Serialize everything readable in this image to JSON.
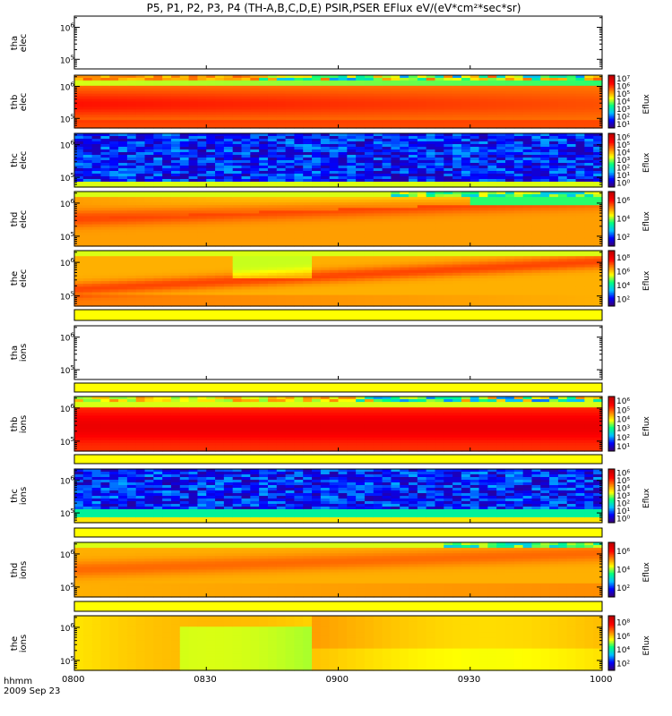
{
  "title": "P5, P1, P2, P3, P4 (TH-A,B,C,D,E) PSIR,PSER EFlux eV/(eV*cm²*sec*sr)",
  "x_axis": {
    "label_line1": "hhmm",
    "label_line2": "2009 Sep 23",
    "ticks": [
      "0800",
      "0830",
      "0900",
      "0930",
      "1000"
    ]
  },
  "chart_data": {
    "type": "heatmap",
    "x_range": [
      "08:00",
      "10:00"
    ],
    "xlabel": "hhmm",
    "y_scale": "log",
    "colorbar_label": "Eflux",
    "panels": [
      {
        "name": "tha_elec",
        "label1": "tha",
        "label2": "elec",
        "has_data": false,
        "yticks": [
          {
            "value": 100000,
            "label": "10",
            "exp": "5"
          },
          {
            "value": 1000000,
            "label": "10",
            "exp": "6"
          }
        ],
        "colorbar": null
      },
      {
        "name": "thb_elec",
        "label1": "thb",
        "label2": "elec",
        "has_data": true,
        "pattern": "thb_elec",
        "yticks": [
          {
            "value": 100000,
            "label": "10",
            "exp": "5"
          },
          {
            "value": 1000000,
            "label": "10",
            "exp": "6"
          }
        ],
        "colorbar": {
          "min_exp": 1,
          "max_exp": 7,
          "labels": [
            "10¹",
            "10²",
            "10³",
            "10⁴",
            "10⁵",
            "10⁶",
            "10⁷"
          ]
        }
      },
      {
        "name": "thc_elec",
        "label1": "thc",
        "label2": "elec",
        "has_data": true,
        "pattern": "thc_elec",
        "yticks": [
          {
            "value": 100000,
            "label": "10",
            "exp": "5"
          },
          {
            "value": 1000000,
            "label": "10",
            "exp": "6"
          }
        ],
        "colorbar": {
          "min_exp": 0,
          "max_exp": 6,
          "labels": [
            "10⁰",
            "10¹",
            "10²",
            "10³",
            "10⁴",
            "10⁵",
            "10⁶"
          ]
        }
      },
      {
        "name": "thd_elec",
        "label1": "thd",
        "label2": "elec",
        "has_data": true,
        "pattern": "thd_elec",
        "yticks": [
          {
            "value": 100000,
            "label": "10",
            "exp": "5"
          },
          {
            "value": 1000000,
            "label": "10",
            "exp": "6"
          }
        ],
        "colorbar": {
          "min_exp": 1,
          "max_exp": 6,
          "labels": [
            "10²",
            "10⁴",
            "10⁶"
          ]
        }
      },
      {
        "name": "the_elec",
        "label1": "the",
        "label2": "elec",
        "has_data": true,
        "pattern": "the_elec",
        "yticks": [
          {
            "value": 100000,
            "label": "10",
            "exp": "5"
          },
          {
            "value": 1000000,
            "label": "10",
            "exp": "6"
          }
        ],
        "colorbar": {
          "min_exp": 1,
          "max_exp": 8,
          "labels": [
            "10²",
            "10⁴",
            "10⁶",
            "10⁸"
          ]
        }
      },
      {
        "name": "tha_ions",
        "label1": "tha",
        "label2": "ions",
        "has_data": false,
        "yticks": [
          {
            "value": 100000,
            "label": "10",
            "exp": "5"
          },
          {
            "value": 1000000,
            "label": "10",
            "exp": "6"
          }
        ],
        "colorbar": null
      },
      {
        "name": "thb_ions",
        "label1": "thb",
        "label2": "ions",
        "has_data": true,
        "pattern": "thb_ions",
        "yticks": [
          {
            "value": 100000,
            "label": "10",
            "exp": "5"
          },
          {
            "value": 1000000,
            "label": "10",
            "exp": "6"
          }
        ],
        "colorbar": {
          "min_exp": 1,
          "max_exp": 6,
          "labels": [
            "10¹",
            "10²",
            "10³",
            "10⁴",
            "10⁵",
            "10⁶"
          ]
        }
      },
      {
        "name": "thc_ions",
        "label1": "thc",
        "label2": "ions",
        "has_data": true,
        "pattern": "thc_ions",
        "yticks": [
          {
            "value": 100000,
            "label": "10",
            "exp": "5"
          },
          {
            "value": 1000000,
            "label": "10",
            "exp": "6"
          }
        ],
        "colorbar": {
          "min_exp": 0,
          "max_exp": 6,
          "labels": [
            "10⁰",
            "10¹",
            "10²",
            "10³",
            "10⁴",
            "10⁵",
            "10⁶"
          ]
        }
      },
      {
        "name": "thd_ions",
        "label1": "thd",
        "label2": "ions",
        "has_data": true,
        "pattern": "thd_ions",
        "yticks": [
          {
            "value": 100000,
            "label": "10",
            "exp": "5"
          },
          {
            "value": 1000000,
            "label": "10",
            "exp": "6"
          }
        ],
        "colorbar": {
          "min_exp": 1,
          "max_exp": 6,
          "labels": [
            "10²",
            "10⁴",
            "10⁶"
          ]
        }
      },
      {
        "name": "the_ions",
        "label1": "the",
        "label2": "ions",
        "has_data": true,
        "pattern": "the_ions",
        "yticks": [
          {
            "value": 100000,
            "label": "10",
            "exp": "5"
          },
          {
            "value": 1000000,
            "label": "10",
            "exp": "6"
          }
        ],
        "colorbar": {
          "min_exp": 1,
          "max_exp": 8,
          "labels": [
            "10²",
            "10⁴",
            "10⁶",
            "10⁸"
          ]
        }
      }
    ]
  },
  "colors": {
    "strip": "#ffff00",
    "colormap": [
      "#3a0070",
      "#0000ff",
      "#00c0ff",
      "#00ff80",
      "#ffff00",
      "#ff8000",
      "#ff0000",
      "#c00000"
    ]
  }
}
